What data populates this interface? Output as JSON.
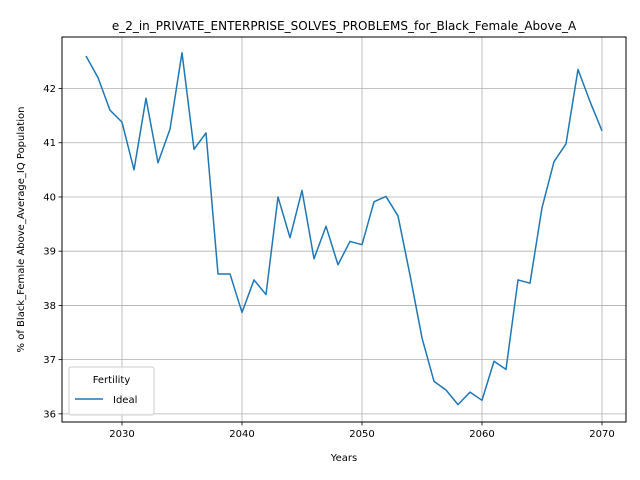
{
  "chart_data": {
    "type": "line",
    "title": "e_2_in_PRIVATE_ENTERPRISE_SOLVES_PROBLEMS_for_Black_Female_Above_A",
    "xlabel": "Years",
    "ylabel": "% of Black_Female Above_Average_IQ Population",
    "xlim": [
      2025,
      2072
    ],
    "ylim": [
      35.85,
      42.95
    ],
    "xticks": [
      2030,
      2040,
      2050,
      2060,
      2070
    ],
    "yticks": [
      36,
      37,
      38,
      39,
      40,
      41,
      42
    ],
    "grid": true,
    "legend": {
      "title": "Fertility",
      "placement": "lower-left"
    },
    "colors": {
      "series": "#1f77b4",
      "grid": "#b0b0b0"
    },
    "series": [
      {
        "name": "Ideal",
        "x": [
          2027,
          2028,
          2029,
          2030,
          2031,
          2032,
          2033,
          2034,
          2035,
          2036,
          2037,
          2038,
          2039,
          2040,
          2041,
          2042,
          2043,
          2044,
          2045,
          2046,
          2047,
          2048,
          2049,
          2050,
          2051,
          2052,
          2053,
          2054,
          2055,
          2056,
          2057,
          2058,
          2059,
          2060,
          2061,
          2062,
          2063,
          2064,
          2065,
          2066,
          2067,
          2068,
          2069,
          2070
        ],
        "values": [
          42.6,
          42.2,
          41.6,
          41.38,
          40.5,
          41.82,
          40.63,
          41.25,
          42.66,
          40.88,
          41.18,
          38.58,
          38.58,
          37.87,
          38.47,
          38.2,
          40.0,
          39.25,
          40.12,
          38.86,
          39.46,
          38.75,
          39.18,
          39.12,
          39.91,
          40.01,
          39.65,
          38.56,
          37.4,
          36.6,
          36.44,
          36.17,
          36.4,
          36.25,
          36.97,
          36.82,
          38.47,
          38.41,
          39.8,
          40.65,
          40.98,
          42.35,
          41.76,
          41.22
        ]
      }
    ]
  }
}
